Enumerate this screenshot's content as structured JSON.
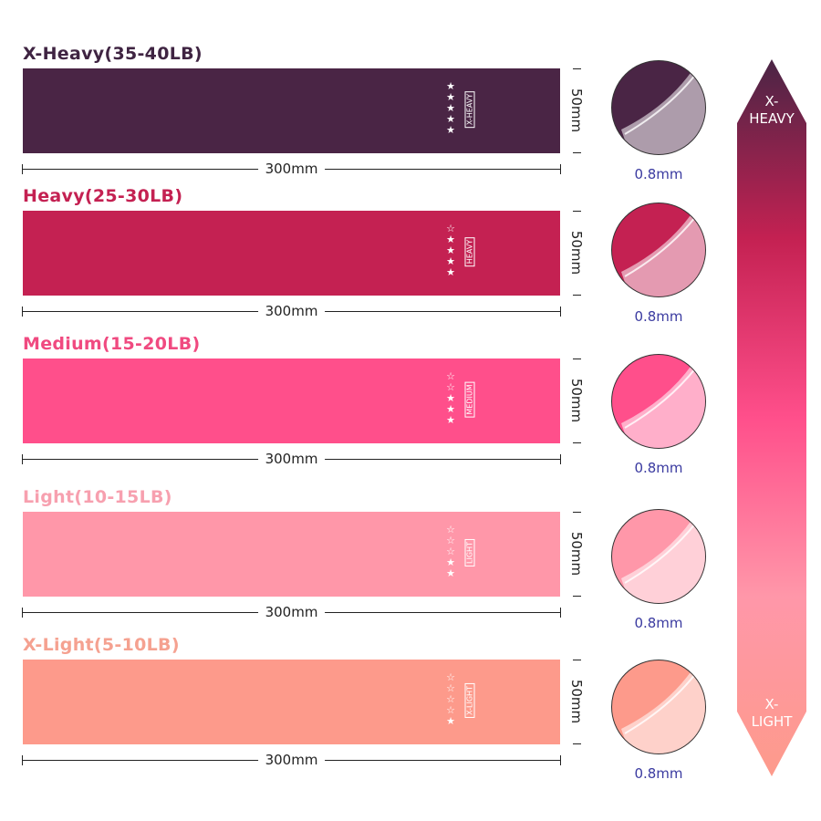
{
  "bands": [
    {
      "title": "X-Heavy(35-40LB)",
      "tag": "X-HEAVY",
      "stars_filled": 5,
      "stars_total": 5,
      "length": "300mm",
      "width": "50mm",
      "thickness": "0.8mm",
      "color": "#4a2545",
      "title_color": "#3f2442"
    },
    {
      "title": "Heavy(25-30LB)",
      "tag": "HEAVY",
      "stars_filled": 4,
      "stars_total": 5,
      "length": "300mm",
      "width": "50mm",
      "thickness": "0.8mm",
      "color": "#c42152",
      "title_color": "#c42152"
    },
    {
      "title": "Medium(15-20LB)",
      "tag": "MEDIUM",
      "stars_filled": 3,
      "stars_total": 5,
      "length": "300mm",
      "width": "50mm",
      "thickness": "0.8mm",
      "color": "#ff4f8b",
      "title_color": "#f04a80"
    },
    {
      "title": "Light(10-15LB)",
      "tag": "LIGHT",
      "stars_filled": 2,
      "stars_total": 5,
      "length": "300mm",
      "width": "50mm",
      "thickness": "0.8mm",
      "color": "#ff97a9",
      "title_color": "#f7a0af"
    },
    {
      "title": "X-Light(5-10LB)",
      "tag": "X-LIGHT",
      "stars_filled": 1,
      "stars_total": 5,
      "length": "300mm",
      "width": "50mm",
      "thickness": "0.8mm",
      "color": "#fd9a8b",
      "title_color": "#f5a190"
    }
  ],
  "scale": {
    "top_label": "X-\nHEAVY",
    "bottom_label": "X-\nLIGHT",
    "top_line1": "X-",
    "top_line2": "HEAVY",
    "bottom_line1": "X-",
    "bottom_line2": "LIGHT"
  }
}
